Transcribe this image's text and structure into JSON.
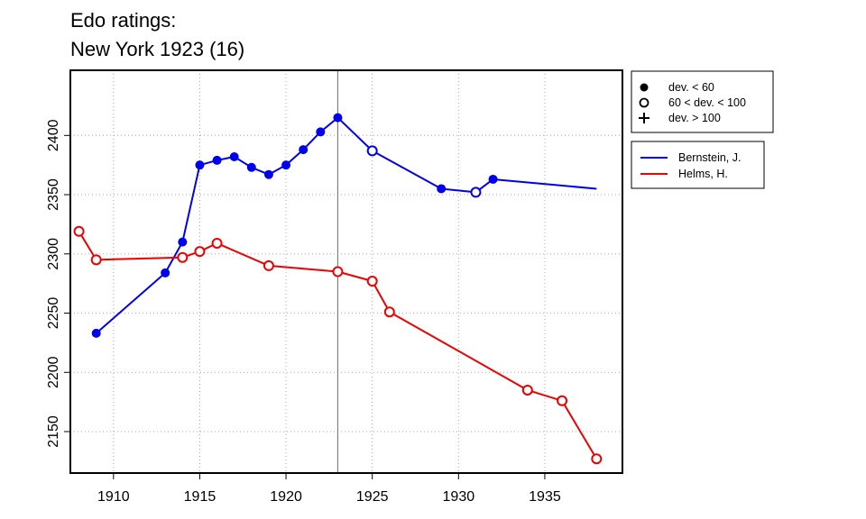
{
  "chart_data": {
    "type": "line",
    "title": "Edo ratings:",
    "subtitle": "New York 1923 (16)",
    "xlabel": "",
    "ylabel": "",
    "xlim": [
      1907.5,
      1939.5
    ],
    "ylim": [
      2115,
      2455
    ],
    "x_ticks": [
      1910,
      1915,
      1920,
      1925,
      1930,
      1935
    ],
    "y_ticks": [
      2150,
      2200,
      2250,
      2300,
      2350,
      2400
    ],
    "grid": true,
    "reference_line_x": 1923,
    "reference_line_color": "#808080",
    "marker_legend": {
      "placement": "top-right",
      "items": [
        {
          "symbol": "filled-circle",
          "label": "dev. < 60"
        },
        {
          "symbol": "open-circle",
          "label": "60 < dev. < 100"
        },
        {
          "symbol": "plus",
          "label": "dev. > 100"
        }
      ]
    },
    "series_legend": {
      "placement": "top-right",
      "items": [
        {
          "label": "Bernstein, J.",
          "color": "#0000ee"
        },
        {
          "label": "Helms, H.",
          "color": "#ee0000"
        }
      ]
    },
    "series": [
      {
        "name": "Bernstein, J.",
        "color": "#0000ee",
        "points": [
          {
            "x": 1909,
            "y": 2233,
            "m": "filled"
          },
          {
            "x": 1913,
            "y": 2284,
            "m": "filled"
          },
          {
            "x": 1914,
            "y": 2310,
            "m": "filled"
          },
          {
            "x": 1915,
            "y": 2375,
            "m": "filled"
          },
          {
            "x": 1916,
            "y": 2379,
            "m": "filled"
          },
          {
            "x": 1917,
            "y": 2382,
            "m": "filled"
          },
          {
            "x": 1918,
            "y": 2373,
            "m": "filled"
          },
          {
            "x": 1919,
            "y": 2367,
            "m": "filled"
          },
          {
            "x": 1920,
            "y": 2375,
            "m": "filled"
          },
          {
            "x": 1921,
            "y": 2388,
            "m": "filled"
          },
          {
            "x": 1922,
            "y": 2403,
            "m": "filled"
          },
          {
            "x": 1923,
            "y": 2415,
            "m": "filled"
          },
          {
            "x": 1925,
            "y": 2387,
            "m": "open"
          },
          {
            "x": 1929,
            "y": 2355,
            "m": "filled"
          },
          {
            "x": 1931,
            "y": 2352,
            "m": "open"
          },
          {
            "x": 1932,
            "y": 2363,
            "m": "filled"
          },
          {
            "x": 1938,
            "y": 2355,
            "m": "none"
          }
        ]
      },
      {
        "name": "Helms, H.",
        "color": "#ee0000",
        "points": [
          {
            "x": 1908,
            "y": 2319,
            "m": "open"
          },
          {
            "x": 1909,
            "y": 2295,
            "m": "open"
          },
          {
            "x": 1914,
            "y": 2297,
            "m": "open"
          },
          {
            "x": 1915,
            "y": 2302,
            "m": "open"
          },
          {
            "x": 1916,
            "y": 2309,
            "m": "open"
          },
          {
            "x": 1919,
            "y": 2290,
            "m": "open"
          },
          {
            "x": 1923,
            "y": 2285,
            "m": "open"
          },
          {
            "x": 1925,
            "y": 2277,
            "m": "open"
          },
          {
            "x": 1926,
            "y": 2251,
            "m": "open"
          },
          {
            "x": 1934,
            "y": 2185,
            "m": "open"
          },
          {
            "x": 1936,
            "y": 2176,
            "m": "open"
          },
          {
            "x": 1938,
            "y": 2127,
            "m": "open"
          }
        ]
      }
    ]
  }
}
